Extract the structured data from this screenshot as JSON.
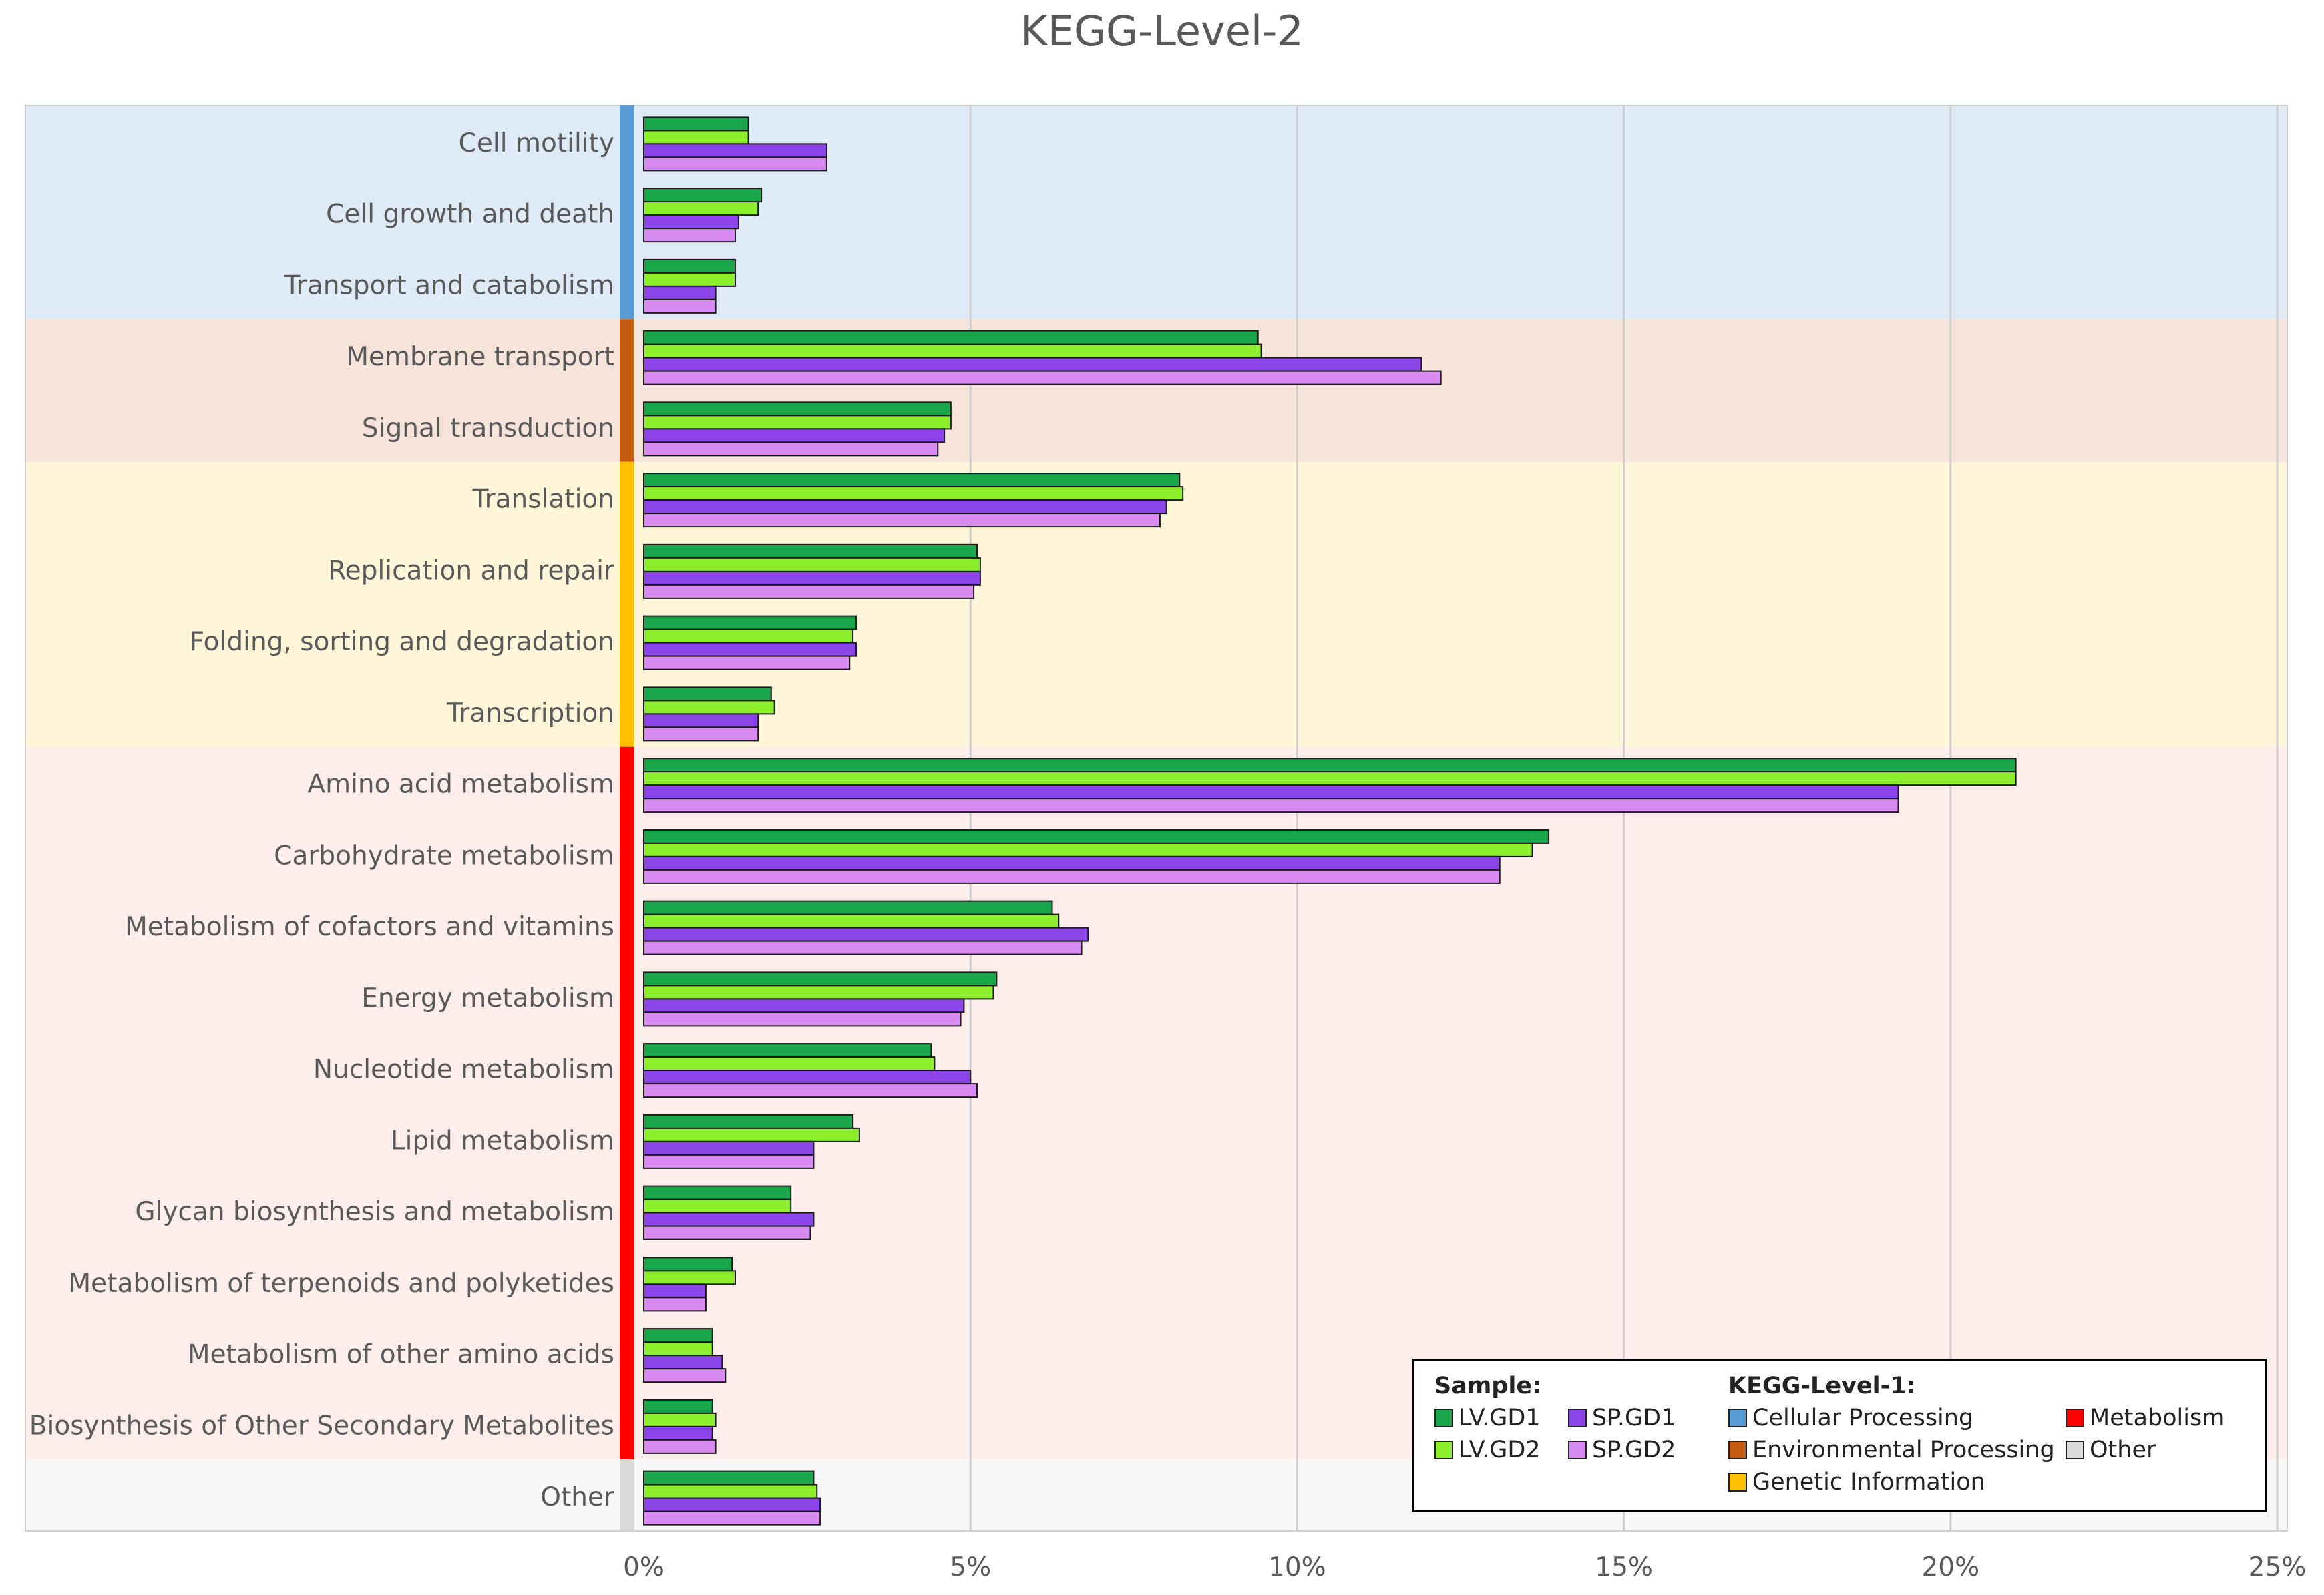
{
  "chart_data": {
    "type": "bar",
    "orientation": "horizontal",
    "title": "KEGG-Level-2",
    "x_axis": {
      "range": [
        0,
        25
      ],
      "ticks": [
        0,
        5,
        10,
        15,
        20,
        25
      ],
      "tick_labels": [
        "0%",
        "5%",
        "10%",
        "15%",
        "20%",
        "25%"
      ],
      "gridlines": true
    },
    "categories": [
      "Cell motility",
      "Cell growth and death",
      "Transport and catabolism",
      "Membrane transport",
      "Signal transduction",
      "Translation",
      "Replication and repair",
      "Folding, sorting and degradation",
      "Transcription",
      "Amino acid metabolism",
      "Carbohydrate metabolism",
      "Metabolism of cofactors and vitamins",
      "Energy metabolism",
      "Nucleotide metabolism",
      "Lipid metabolism",
      "Glycan biosynthesis and metabolism",
      "Metabolism of terpenoids and polyketides",
      "Metabolism of other amino acids",
      "Biosynthesis of Other Secondary Metabolites",
      "Other"
    ],
    "category_groups": [
      "Cellular Processing",
      "Cellular Processing",
      "Cellular Processing",
      "Environmental Processing",
      "Environmental Processing",
      "Genetic Information",
      "Genetic Information",
      "Genetic Information",
      "Genetic Information",
      "Metabolism",
      "Metabolism",
      "Metabolism",
      "Metabolism",
      "Metabolism",
      "Metabolism",
      "Metabolism",
      "Metabolism",
      "Metabolism",
      "Metabolism",
      "Other"
    ],
    "series": [
      {
        "name": "LV.GD1",
        "color": "#1aa64a",
        "values": [
          1.6,
          1.8,
          1.4,
          9.4,
          4.7,
          8.2,
          5.1,
          3.25,
          1.95,
          21.0,
          13.85,
          6.25,
          5.4,
          4.4,
          3.2,
          2.25,
          1.35,
          1.05,
          1.05,
          2.6
        ]
      },
      {
        "name": "LV.GD2",
        "color": "#8ef02c",
        "values": [
          1.6,
          1.75,
          1.4,
          9.45,
          4.7,
          8.25,
          5.15,
          3.2,
          2.0,
          21.0,
          13.6,
          6.35,
          5.35,
          4.45,
          3.3,
          2.25,
          1.4,
          1.05,
          1.1,
          2.65
        ]
      },
      {
        "name": "SP.GD1",
        "color": "#8b45e8",
        "values": [
          2.8,
          1.45,
          1.1,
          11.9,
          4.6,
          8.0,
          5.15,
          3.25,
          1.75,
          19.2,
          13.1,
          6.8,
          4.9,
          5.0,
          2.6,
          2.6,
          0.95,
          1.2,
          1.05,
          2.7
        ]
      },
      {
        "name": "SP.GD2",
        "color": "#d78bf0",
        "values": [
          2.8,
          1.4,
          1.1,
          12.2,
          4.5,
          7.9,
          5.05,
          3.15,
          1.75,
          19.2,
          13.1,
          6.7,
          4.85,
          5.1,
          2.6,
          2.55,
          0.95,
          1.25,
          1.1,
          2.7
        ]
      }
    ],
    "groups": [
      {
        "name": "Cellular Processing",
        "bar_color": "#5b9bd5",
        "band_color": "#deebf7"
      },
      {
        "name": "Environmental Processing",
        "bar_color": "#c55a11",
        "band_color": "#f6e4da"
      },
      {
        "name": "Genetic Information",
        "bar_color": "#ffc000",
        "band_color": "#fff5d9"
      },
      {
        "name": "Metabolism",
        "bar_color": "#ff0000",
        "band_color": "#fdeeec"
      },
      {
        "name": "Other",
        "bar_color": "#d9d9d9",
        "band_color": "#f7f7f7"
      }
    ],
    "legend": {
      "position": "bottom-right",
      "sample_header": "Sample:",
      "level1_header": "KEGG-Level-1:"
    }
  }
}
